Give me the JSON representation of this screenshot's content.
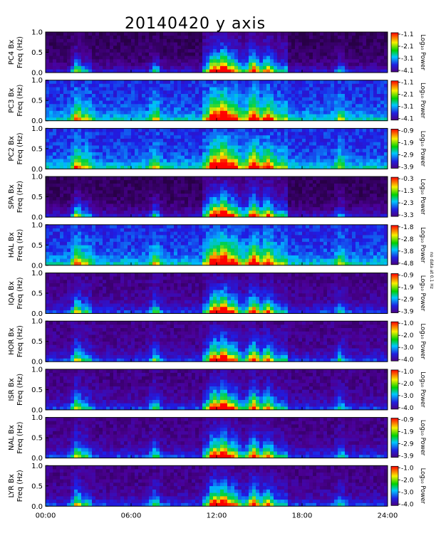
{
  "chart_data": {
    "type": "heatmap",
    "title": "20140420 y axis",
    "xlabel": "",
    "x_ticks": [
      "00:00",
      "06:00",
      "12:00",
      "18:00",
      "24:00"
    ],
    "xlim_hours": [
      0,
      24
    ],
    "y_ticks": [
      "0.0",
      "0.5",
      "1.0"
    ],
    "ylim_hz": [
      0,
      1.0
    ],
    "colorbar_label": "Log₁₀ Power",
    "colormap": "rainbow (purple → blue → green → yellow → red)",
    "side_note": "no data at 0.1 Hz",
    "panels": [
      {
        "station": "PC4",
        "ylabel_top": "PC4 Bx",
        "ylabel_bottom": "Freq (Hz)",
        "cbar_ticks": [
          "-1.1",
          "-2.1",
          "-3.1",
          "-4.1"
        ],
        "vmax": -1.1,
        "vmin": -4.1
      },
      {
        "station": "PC3",
        "ylabel_top": "PC3 Bx",
        "ylabel_bottom": "Freq (Hz)",
        "cbar_ticks": [
          "-1.1",
          "-2.1",
          "-3.1",
          "-4.1"
        ],
        "vmax": -1.1,
        "vmin": -4.1
      },
      {
        "station": "PC2",
        "ylabel_top": "PC2 Bx",
        "ylabel_bottom": "Freq (Hz)",
        "cbar_ticks": [
          "-0.9",
          "-1.9",
          "-2.9",
          "-3.9"
        ],
        "vmax": -0.9,
        "vmin": -3.9
      },
      {
        "station": "SPA",
        "ylabel_top": "SPA Bx",
        "ylabel_bottom": "Freq (Hz)",
        "cbar_ticks": [
          "-0.3",
          "-1.3",
          "-2.3",
          "-3.3"
        ],
        "vmax": -0.3,
        "vmin": -3.3
      },
      {
        "station": "HAL",
        "ylabel_top": "HAL Bx",
        "ylabel_bottom": "Freq (Hz)",
        "cbar_ticks": [
          "-1.8",
          "-2.8",
          "-3.8",
          "-4.8"
        ],
        "vmax": -1.8,
        "vmin": -4.8
      },
      {
        "station": "IQA",
        "ylabel_top": "IQA Bx",
        "ylabel_bottom": "Freq (Hz)",
        "cbar_ticks": [
          "-0.9",
          "-1.9",
          "-2.9",
          "-3.9"
        ],
        "vmax": -0.9,
        "vmin": -3.9
      },
      {
        "station": "HOR",
        "ylabel_top": "HOR Bx",
        "ylabel_bottom": "Freq (Hz)",
        "cbar_ticks": [
          "-1.0",
          "-2.0",
          "-3.0",
          "-4.0"
        ],
        "vmax": -1.0,
        "vmin": -4.0
      },
      {
        "station": "ISR",
        "ylabel_top": "ISR Bx",
        "ylabel_bottom": "Freq (Hz)",
        "cbar_ticks": [
          "-1.0",
          "-2.0",
          "-3.0",
          "-4.0"
        ],
        "vmax": -1.0,
        "vmin": -4.0
      },
      {
        "station": "NAL",
        "ylabel_top": "NAL Bx",
        "ylabel_bottom": "Freq (Hz)",
        "cbar_ticks": [
          "-0.9",
          "-1.9",
          "-2.9",
          "-3.9"
        ],
        "vmax": -0.9,
        "vmin": -3.9
      },
      {
        "station": "LYR",
        "ylabel_top": "LYR Bx",
        "ylabel_bottom": "Freq (Hz)",
        "cbar_ticks": [
          "-1.0",
          "-2.0",
          "-3.0",
          "-4.0"
        ],
        "vmax": -1.0,
        "vmin": -4.0
      }
    ]
  }
}
